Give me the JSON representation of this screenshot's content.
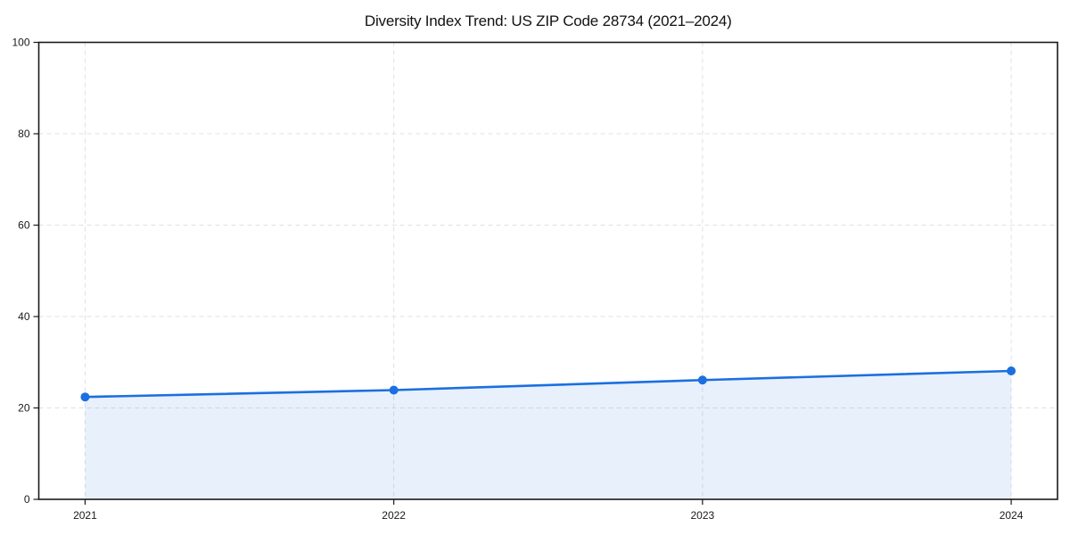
{
  "figure": {
    "title": "Diversity Index Trend: US ZIP Code 28734 (2021–2024)"
  },
  "chart_data": {
    "type": "area",
    "title": "Diversity Index Trend: US ZIP Code 28734 (2021–2024)",
    "series_name": "Diversity Index",
    "categories": [
      "2021",
      "2022",
      "2023",
      "2024"
    ],
    "x": [
      2021,
      2022,
      2023,
      2024
    ],
    "values": [
      22.4,
      23.9,
      26.1,
      28.1
    ],
    "xlabel": "",
    "ylabel": "",
    "ylim": [
      0,
      100
    ],
    "yticks": [
      0,
      20,
      40,
      60,
      80,
      100
    ],
    "grid": "dashed, horizontal and vertical at ticks",
    "legend": "none",
    "marker": "circle",
    "colors": {
      "line": "#1b6fe0",
      "marker": "#1b6fe0",
      "area_fill": "rgba(27,111,224,0.10)",
      "gridline": "#e0e0e0",
      "axis": "#1a1a1a",
      "tick_text": "#1a1a1a",
      "title_text": "#111111",
      "background": "#ffffff"
    }
  }
}
